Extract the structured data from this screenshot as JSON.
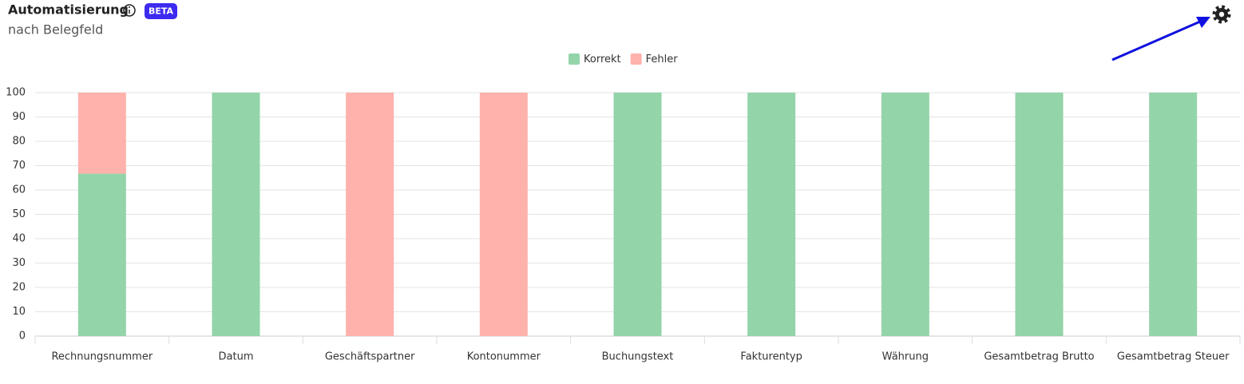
{
  "chart_data": {
    "type": "stacked-bar",
    "title": "Automatisierung",
    "badge": "BETA",
    "subtitle": "nach Belegfeld",
    "categories": [
      "Rechnungsnummer",
      "Datum",
      "Geschäftspartner",
      "Kontonummer",
      "Buchungstext",
      "Fakturentyp",
      "Währung",
      "Gesamtbetrag Brutto",
      "Gesamtbetrag Steuer"
    ],
    "series": [
      {
        "name": "Korrekt",
        "color": "#93d4a9",
        "values": [
          66.7,
          100,
          0,
          0,
          100,
          100,
          100,
          100,
          100
        ]
      },
      {
        "name": "Fehler",
        "color": "#ffb1ab",
        "values": [
          33.3,
          0,
          100,
          100,
          0,
          0,
          0,
          0,
          0
        ]
      }
    ],
    "ylim": [
      0,
      100
    ],
    "yticks": [
      0,
      10,
      20,
      30,
      40,
      50,
      60,
      70,
      80,
      90,
      100
    ],
    "grid": true,
    "legend": "top"
  }
}
